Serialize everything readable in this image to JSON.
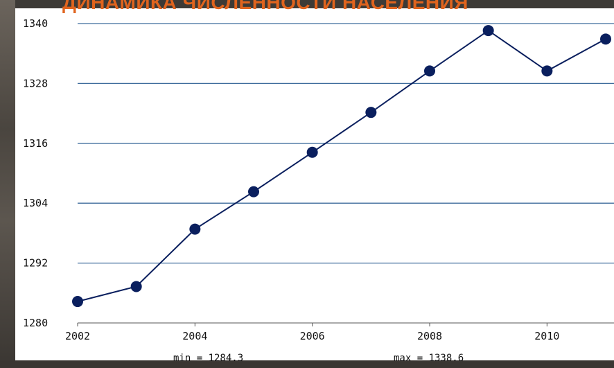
{
  "slide": {
    "title": "ДИНАМИКА ЧИСЛЕННОСТИ НАСЕЛЕНИЯ",
    "title_color": "#e0641e"
  },
  "chart_data": {
    "type": "line",
    "title": "ДИНАМИКА ЧИСЛЕННОСТИ НАСЕЛЕНИЯ",
    "xlabel": "",
    "ylabel": "",
    "x": [
      2002,
      2003,
      2004,
      2005,
      2006,
      2007,
      2008,
      2009,
      2010,
      2011
    ],
    "series": [
      {
        "values": [
          1284.3,
          1287.3,
          1298.8,
          1306.3,
          1314.2,
          1322.2,
          1330.5,
          1338.6,
          1330.5,
          1336.9
        ],
        "color": "#0a1f5e"
      }
    ],
    "xlim": [
      2002,
      2011
    ],
    "ylim": [
      1280,
      1340
    ],
    "xticks": [
      2002,
      2004,
      2006,
      2008,
      2010
    ],
    "yticks": [
      1280,
      1292,
      1304,
      1316,
      1328,
      1340
    ],
    "grid": "horizontal",
    "gridline_color": "#3e6c9c",
    "min_label": "min = 1284.3",
    "max_label": "max = 1338.6"
  }
}
